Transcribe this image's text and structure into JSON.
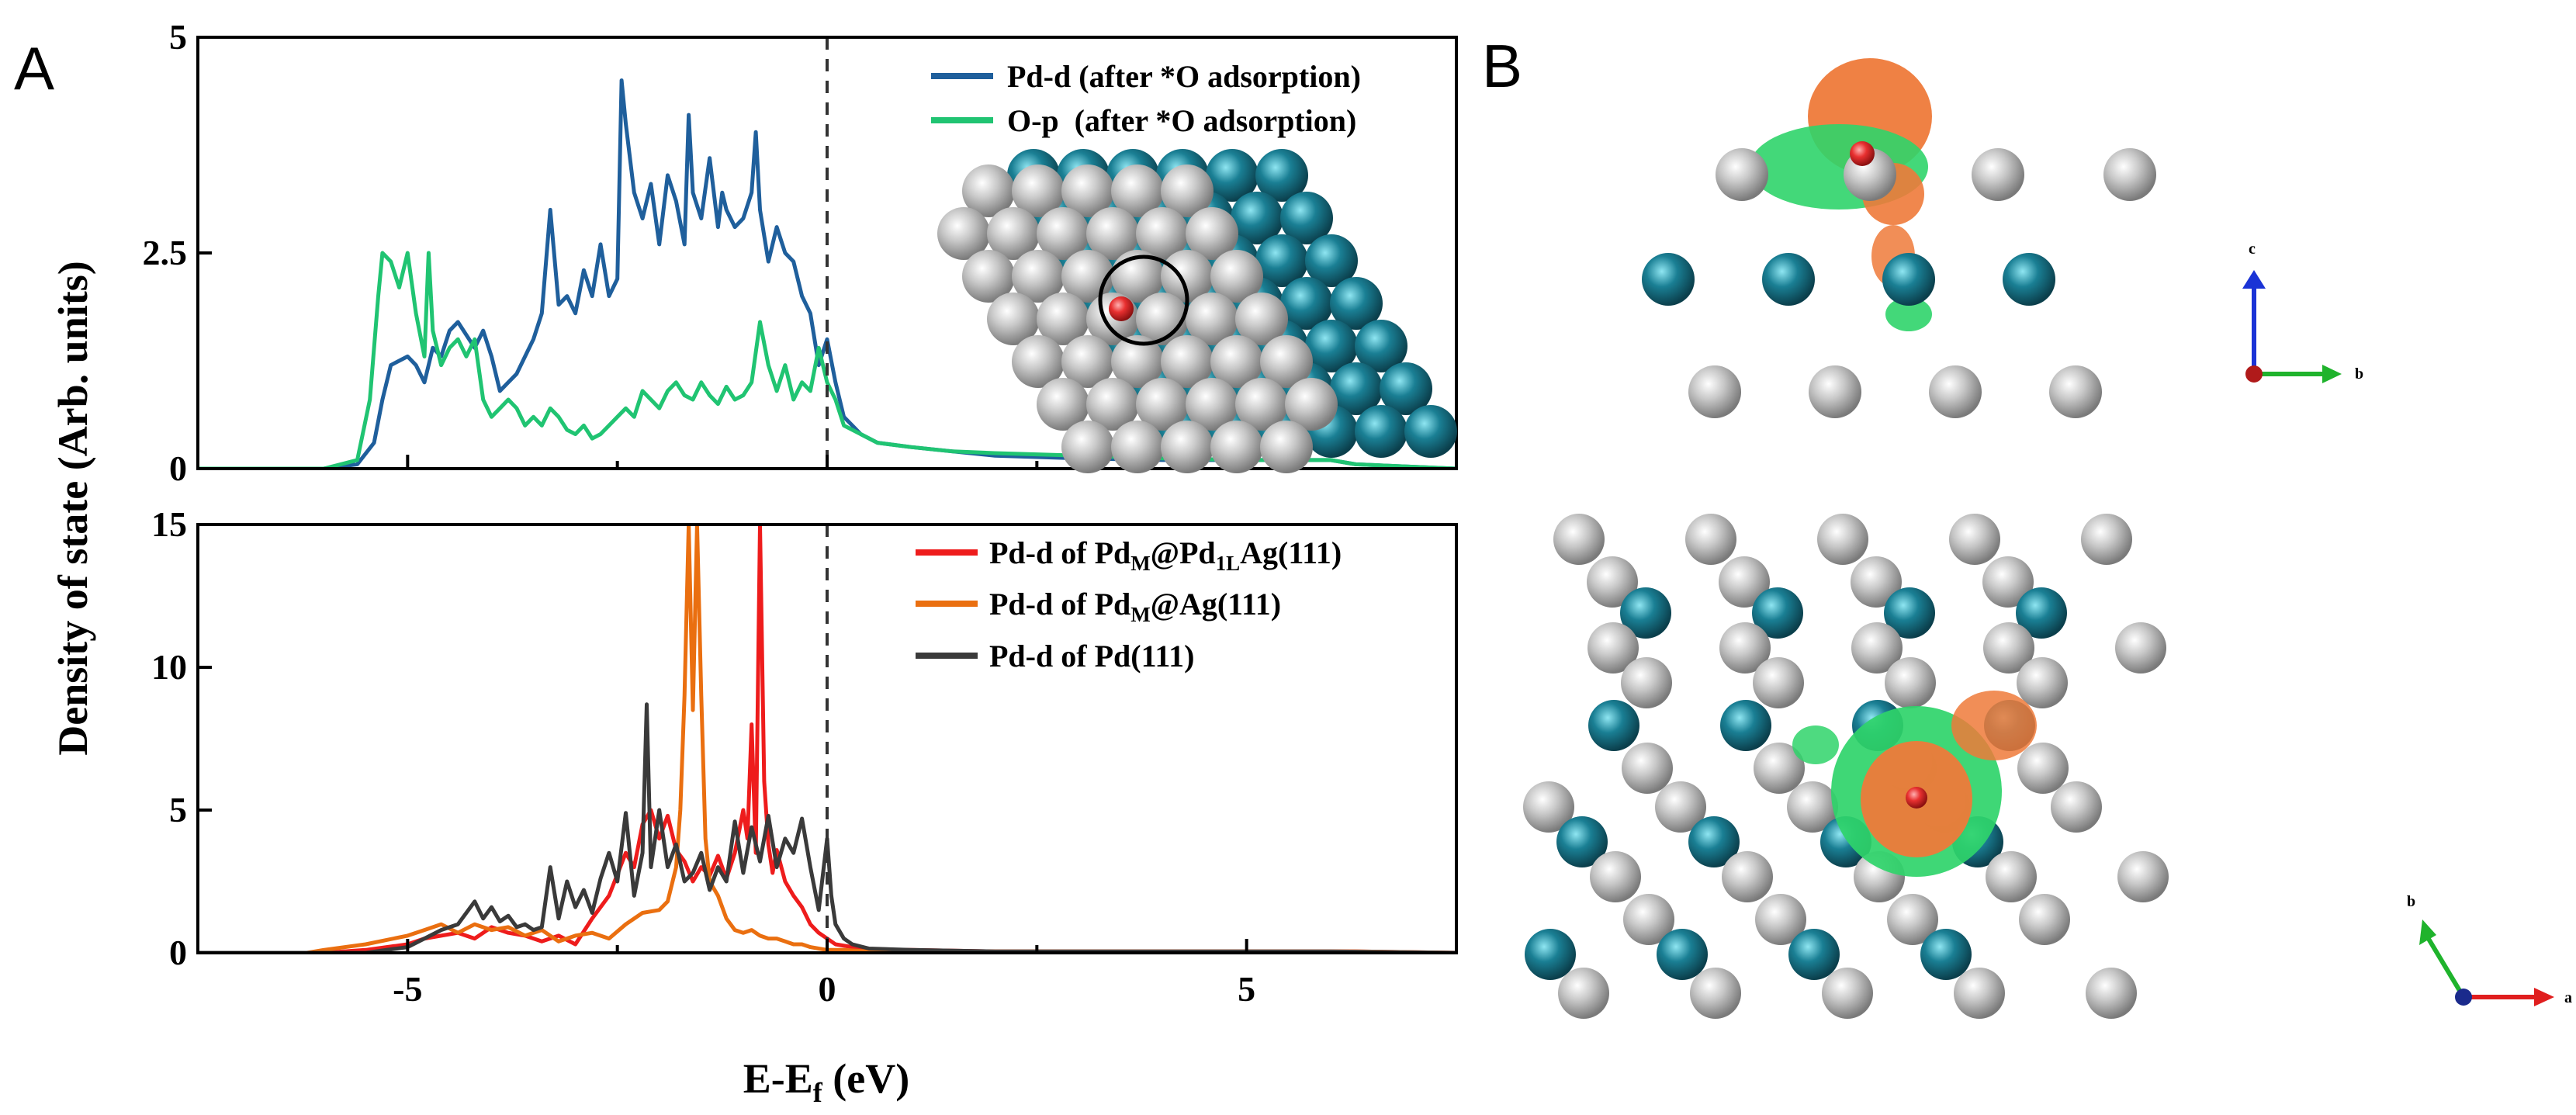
{
  "figure": {
    "panel_a_label": "A",
    "panel_b_label": "B"
  },
  "colors": {
    "pd_d_after_o": "#1f5f9c",
    "o_p_after_o": "#20c472",
    "pd_m_pd1l_ag": "#ee1c1c",
    "pd_m_ag": "#ea6f10",
    "pd111": "#3a3a3a",
    "ag_atom": "#c8c8c8",
    "pd_atom": "#1a7f94",
    "o_atom": "#e83030",
    "charge_depletion": "#ee7a3a",
    "charge_accumulation": "#2fd46a"
  },
  "chart_data": [
    {
      "type": "line",
      "panel": "top",
      "xlim": [
        -7.5,
        7.5
      ],
      "ylim": [
        0,
        5
      ],
      "yticks": [
        0,
        2.5,
        5
      ],
      "ytick_labels": [
        "0",
        "2.5",
        "5"
      ],
      "fermi_level": 0,
      "series": [
        {
          "name": "Pd-d (after *O adsorption)",
          "legend": "Pd-d (after *O adsorption)",
          "color": "#1f5f9c",
          "x": [
            -7.5,
            -6.0,
            -5.6,
            -5.4,
            -5.3,
            -5.2,
            -5.0,
            -4.9,
            -4.8,
            -4.7,
            -4.6,
            -4.5,
            -4.4,
            -4.2,
            -4.1,
            -4.0,
            -3.9,
            -3.8,
            -3.7,
            -3.6,
            -3.5,
            -3.4,
            -3.3,
            -3.2,
            -3.1,
            -3.0,
            -2.9,
            -2.8,
            -2.7,
            -2.6,
            -2.5,
            -2.45,
            -2.4,
            -2.3,
            -2.2,
            -2.1,
            -2.0,
            -1.95,
            -1.9,
            -1.8,
            -1.7,
            -1.65,
            -1.6,
            -1.5,
            -1.4,
            -1.3,
            -1.25,
            -1.2,
            -1.1,
            -1.0,
            -0.9,
            -0.85,
            -0.8,
            -0.7,
            -0.6,
            -0.5,
            -0.4,
            -0.3,
            -0.2,
            -0.1,
            0.0,
            0.1,
            0.2,
            0.4,
            0.6,
            1.0,
            1.5,
            2.0,
            3.0,
            4.0,
            5.0,
            6.0,
            6.3,
            7.5
          ],
          "y": [
            0,
            0,
            0.05,
            0.3,
            0.8,
            1.2,
            1.3,
            1.2,
            1.0,
            1.4,
            1.3,
            1.6,
            1.7,
            1.4,
            1.6,
            1.3,
            0.9,
            1.0,
            1.1,
            1.3,
            1.5,
            1.8,
            3.0,
            1.9,
            2.0,
            1.8,
            2.3,
            2.0,
            2.6,
            2.0,
            2.2,
            4.5,
            4.0,
            3.2,
            2.9,
            3.3,
            2.6,
            3.0,
            3.4,
            3.1,
            2.6,
            4.1,
            3.2,
            2.9,
            3.6,
            2.8,
            3.2,
            3.0,
            2.8,
            2.9,
            3.2,
            3.9,
            3.0,
            2.4,
            2.8,
            2.5,
            2.4,
            2.0,
            1.8,
            1.2,
            1.5,
            1.0,
            0.6,
            0.4,
            0.3,
            0.25,
            0.2,
            0.15,
            0.12,
            0.1,
            0.1,
            0.1,
            0.05,
            0
          ]
        },
        {
          "name": "O-p  (after *O adsorption)",
          "legend": "O-p  (after *O adsorption)",
          "color": "#20c472",
          "x": [
            -7.5,
            -6.0,
            -5.6,
            -5.45,
            -5.35,
            -5.3,
            -5.2,
            -5.1,
            -5.0,
            -4.9,
            -4.8,
            -4.75,
            -4.7,
            -4.6,
            -4.5,
            -4.4,
            -4.3,
            -4.2,
            -4.1,
            -4.0,
            -3.9,
            -3.8,
            -3.7,
            -3.6,
            -3.5,
            -3.4,
            -3.3,
            -3.2,
            -3.1,
            -3.0,
            -2.9,
            -2.8,
            -2.7,
            -2.6,
            -2.5,
            -2.4,
            -2.3,
            -2.2,
            -2.1,
            -2.0,
            -1.9,
            -1.8,
            -1.7,
            -1.6,
            -1.5,
            -1.4,
            -1.3,
            -1.2,
            -1.1,
            -1.0,
            -0.9,
            -0.8,
            -0.7,
            -0.6,
            -0.5,
            -0.4,
            -0.3,
            -0.2,
            -0.1,
            0.0,
            0.1,
            0.2,
            0.4,
            0.6,
            1.0,
            1.5,
            2.0,
            3.0,
            4.0,
            5.0,
            6.0,
            6.3,
            7.5
          ],
          "y": [
            0,
            0,
            0.1,
            0.8,
            2.0,
            2.5,
            2.4,
            2.1,
            2.5,
            1.8,
            1.3,
            2.5,
            1.6,
            1.2,
            1.4,
            1.5,
            1.3,
            1.5,
            0.8,
            0.6,
            0.7,
            0.8,
            0.7,
            0.5,
            0.6,
            0.5,
            0.7,
            0.6,
            0.45,
            0.4,
            0.5,
            0.35,
            0.4,
            0.5,
            0.6,
            0.7,
            0.6,
            0.9,
            0.8,
            0.7,
            0.9,
            1.0,
            0.85,
            0.8,
            1.0,
            0.85,
            0.75,
            0.95,
            0.8,
            0.85,
            1.0,
            1.7,
            1.2,
            0.9,
            1.2,
            0.8,
            1.0,
            0.9,
            1.4,
            1.0,
            0.8,
            0.5,
            0.4,
            0.3,
            0.25,
            0.2,
            0.18,
            0.15,
            0.12,
            0.1,
            0.1,
            0.05,
            0
          ]
        }
      ]
    },
    {
      "type": "line",
      "panel": "bottom",
      "xlim": [
        -7.5,
        7.5
      ],
      "ylim": [
        0,
        15
      ],
      "yticks": [
        0,
        5,
        10,
        15
      ],
      "ytick_labels": [
        "0",
        "5",
        "10",
        "15"
      ],
      "xticks": [
        -5,
        0,
        5
      ],
      "xtick_labels": [
        "-5",
        "0",
        "5"
      ],
      "fermi_level": 0,
      "series": [
        {
          "name": "Pd-d of PdM@Pd1LAg(111)",
          "legend_prefix": "Pd-d of Pd",
          "legend_sub1": "M",
          "legend_mid": "@Pd",
          "legend_sub2": "1L",
          "legend_suffix": "Ag(111)",
          "color": "#ee1c1c",
          "x": [
            -7.5,
            -6.0,
            -5.5,
            -5.0,
            -4.8,
            -4.6,
            -4.4,
            -4.2,
            -4.0,
            -3.8,
            -3.6,
            -3.4,
            -3.2,
            -3.0,
            -2.8,
            -2.6,
            -2.4,
            -2.3,
            -2.2,
            -2.1,
            -2.0,
            -1.9,
            -1.8,
            -1.7,
            -1.6,
            -1.5,
            -1.4,
            -1.3,
            -1.2,
            -1.1,
            -1.0,
            -0.95,
            -0.9,
            -0.85,
            -0.8,
            -0.75,
            -0.7,
            -0.65,
            -0.6,
            -0.5,
            -0.4,
            -0.3,
            -0.2,
            -0.1,
            0.0,
            0.1,
            0.3,
            0.6,
            1.0,
            2.0,
            3.0,
            4.0,
            5.0,
            6.0,
            6.3,
            7.5
          ],
          "y": [
            0,
            0,
            0.1,
            0.3,
            0.5,
            0.6,
            0.7,
            0.5,
            0.9,
            0.7,
            0.6,
            0.4,
            0.6,
            0.3,
            1.2,
            2.0,
            3.5,
            3.0,
            4.5,
            5.0,
            4.0,
            4.8,
            3.6,
            3.2,
            2.5,
            3.0,
            2.7,
            3.4,
            2.6,
            3.5,
            5.0,
            4.0,
            8.0,
            3.5,
            15.5,
            6.0,
            3.8,
            2.8,
            3.6,
            2.5,
            2.0,
            1.6,
            1.0,
            0.7,
            0.5,
            0.3,
            0.2,
            0.1,
            0.1,
            0.05,
            0.05,
            0.05,
            0.05,
            0.05,
            0.05,
            0
          ]
        },
        {
          "name": "Pd-d of PdM@Ag(111)",
          "legend_prefix": "Pd-d of Pd",
          "legend_sub1": "M",
          "legend_suffix": "@Ag(111)",
          "color": "#ea6f10",
          "x": [
            -7.5,
            -6.2,
            -6.0,
            -5.5,
            -5.0,
            -4.8,
            -4.6,
            -4.4,
            -4.2,
            -4.0,
            -3.8,
            -3.6,
            -3.4,
            -3.2,
            -3.0,
            -2.8,
            -2.6,
            -2.4,
            -2.2,
            -2.0,
            -1.9,
            -1.8,
            -1.75,
            -1.7,
            -1.65,
            -1.6,
            -1.55,
            -1.5,
            -1.45,
            -1.4,
            -1.3,
            -1.2,
            -1.1,
            -1.0,
            -0.9,
            -0.8,
            -0.7,
            -0.6,
            -0.5,
            -0.4,
            -0.3,
            -0.2,
            -0.1,
            0.0,
            0.2,
            0.5,
            1.0,
            2.0,
            3.0,
            4.0,
            5.0,
            6.0,
            6.3,
            7.5
          ],
          "y": [
            0,
            0,
            0.1,
            0.3,
            0.6,
            0.8,
            1.0,
            0.7,
            1.0,
            0.8,
            0.9,
            0.6,
            0.8,
            0.4,
            0.6,
            0.7,
            0.5,
            1.0,
            1.4,
            1.5,
            1.8,
            3.0,
            5.0,
            9.0,
            15.5,
            8.5,
            15.5,
            9.0,
            4.0,
            2.5,
            2.0,
            1.2,
            0.8,
            0.7,
            0.8,
            0.6,
            0.5,
            0.5,
            0.4,
            0.3,
            0.3,
            0.2,
            0.15,
            0.1,
            0.1,
            0.05,
            0.05,
            0.05,
            0.05,
            0.05,
            0.05,
            0.05,
            0.05,
            0
          ]
        },
        {
          "name": "Pd-d of Pd(111)",
          "legend": "Pd-d of Pd(111)",
          "color": "#3a3a3a",
          "x": [
            -7.5,
            -5.5,
            -5.0,
            -4.8,
            -4.6,
            -4.4,
            -4.2,
            -4.1,
            -4.0,
            -3.9,
            -3.8,
            -3.7,
            -3.6,
            -3.5,
            -3.4,
            -3.3,
            -3.2,
            -3.1,
            -3.0,
            -2.9,
            -2.8,
            -2.7,
            -2.6,
            -2.5,
            -2.4,
            -2.3,
            -2.2,
            -2.15,
            -2.1,
            -2.0,
            -1.9,
            -1.8,
            -1.7,
            -1.6,
            -1.5,
            -1.4,
            -1.3,
            -1.2,
            -1.1,
            -1.0,
            -0.9,
            -0.8,
            -0.7,
            -0.6,
            -0.5,
            -0.4,
            -0.3,
            -0.2,
            -0.1,
            0.0,
            0.05,
            0.1,
            0.2,
            0.3,
            0.5,
            1.0,
            2.0,
            3.0,
            4.0,
            5.0,
            6.0,
            7.5
          ],
          "y": [
            0,
            0,
            0.2,
            0.5,
            0.8,
            1.0,
            1.8,
            1.2,
            1.6,
            1.1,
            1.3,
            0.9,
            1.0,
            0.8,
            0.9,
            3.0,
            1.2,
            2.5,
            1.6,
            2.2,
            1.4,
            2.6,
            3.5,
            2.5,
            4.9,
            2.0,
            3.5,
            8.7,
            3.0,
            5.0,
            3.0,
            3.8,
            2.5,
            2.8,
            3.5,
            2.2,
            3.0,
            2.5,
            4.6,
            2.8,
            4.4,
            3.2,
            4.8,
            3.0,
            4.0,
            3.5,
            4.7,
            3.0,
            1.5,
            4.0,
            2.0,
            1.0,
            0.5,
            0.3,
            0.15,
            0.1,
            0.05,
            0.05,
            0.05,
            0.05,
            0.05,
            0
          ]
        }
      ]
    }
  ],
  "axes": {
    "ylabel": "Density of state (Arb. units)",
    "xlabel_main": "E-E",
    "xlabel_sub": "f",
    "xlabel_unit": " (eV)"
  },
  "crystal_axes": {
    "top": {
      "up": "c",
      "right": "b"
    },
    "bottom": {
      "up": "b",
      "right": "a"
    }
  }
}
